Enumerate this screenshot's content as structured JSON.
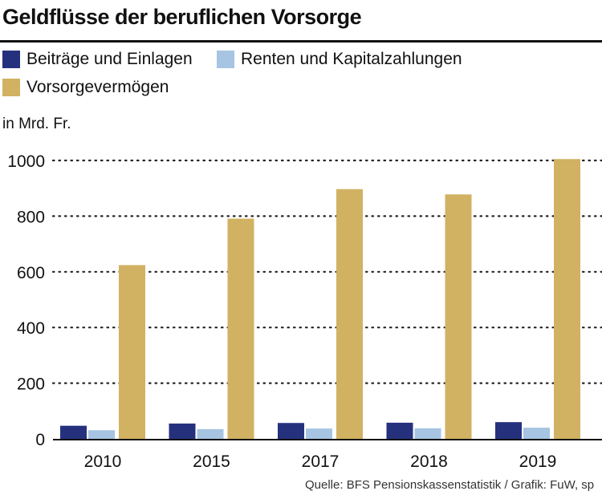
{
  "title": "Geldflüsse der beruflichen Vorsorge",
  "legend": [
    {
      "label": "Beiträge und Einlagen",
      "color": "#26317e"
    },
    {
      "label": "Renten und Kapitalzahlungen",
      "color": "#a7c4e2"
    },
    {
      "label": "Vorsorgevermögen",
      "color": "#d1b162"
    }
  ],
  "unit_label": "in Mrd. Fr.",
  "source": "Quelle: BFS Pensionskassenstatistik / Grafik: FuW, sp",
  "chart_data": {
    "type": "bar",
    "title": "Geldflüsse der beruflichen Vorsorge",
    "ylabel": "in Mrd. Fr.",
    "xlabel": "",
    "categories": [
      "2010",
      "2015",
      "2017",
      "2018",
      "2019"
    ],
    "series": [
      {
        "name": "Beiträge und Einlagen",
        "values": [
          47,
          55,
          57,
          58,
          60
        ]
      },
      {
        "name": "Renten und Kapitalzahlungen",
        "values": [
          31,
          35,
          37,
          38,
          40
        ]
      },
      {
        "name": "Vorsorgevermögen",
        "values": [
          624,
          791,
          897,
          878,
          1005
        ]
      }
    ],
    "ylim": [
      0,
      1000
    ],
    "yticks": [
      "0",
      "200",
      "400",
      "600",
      "800",
      "1000"
    ],
    "grid": true,
    "legend_position": "top-left"
  }
}
